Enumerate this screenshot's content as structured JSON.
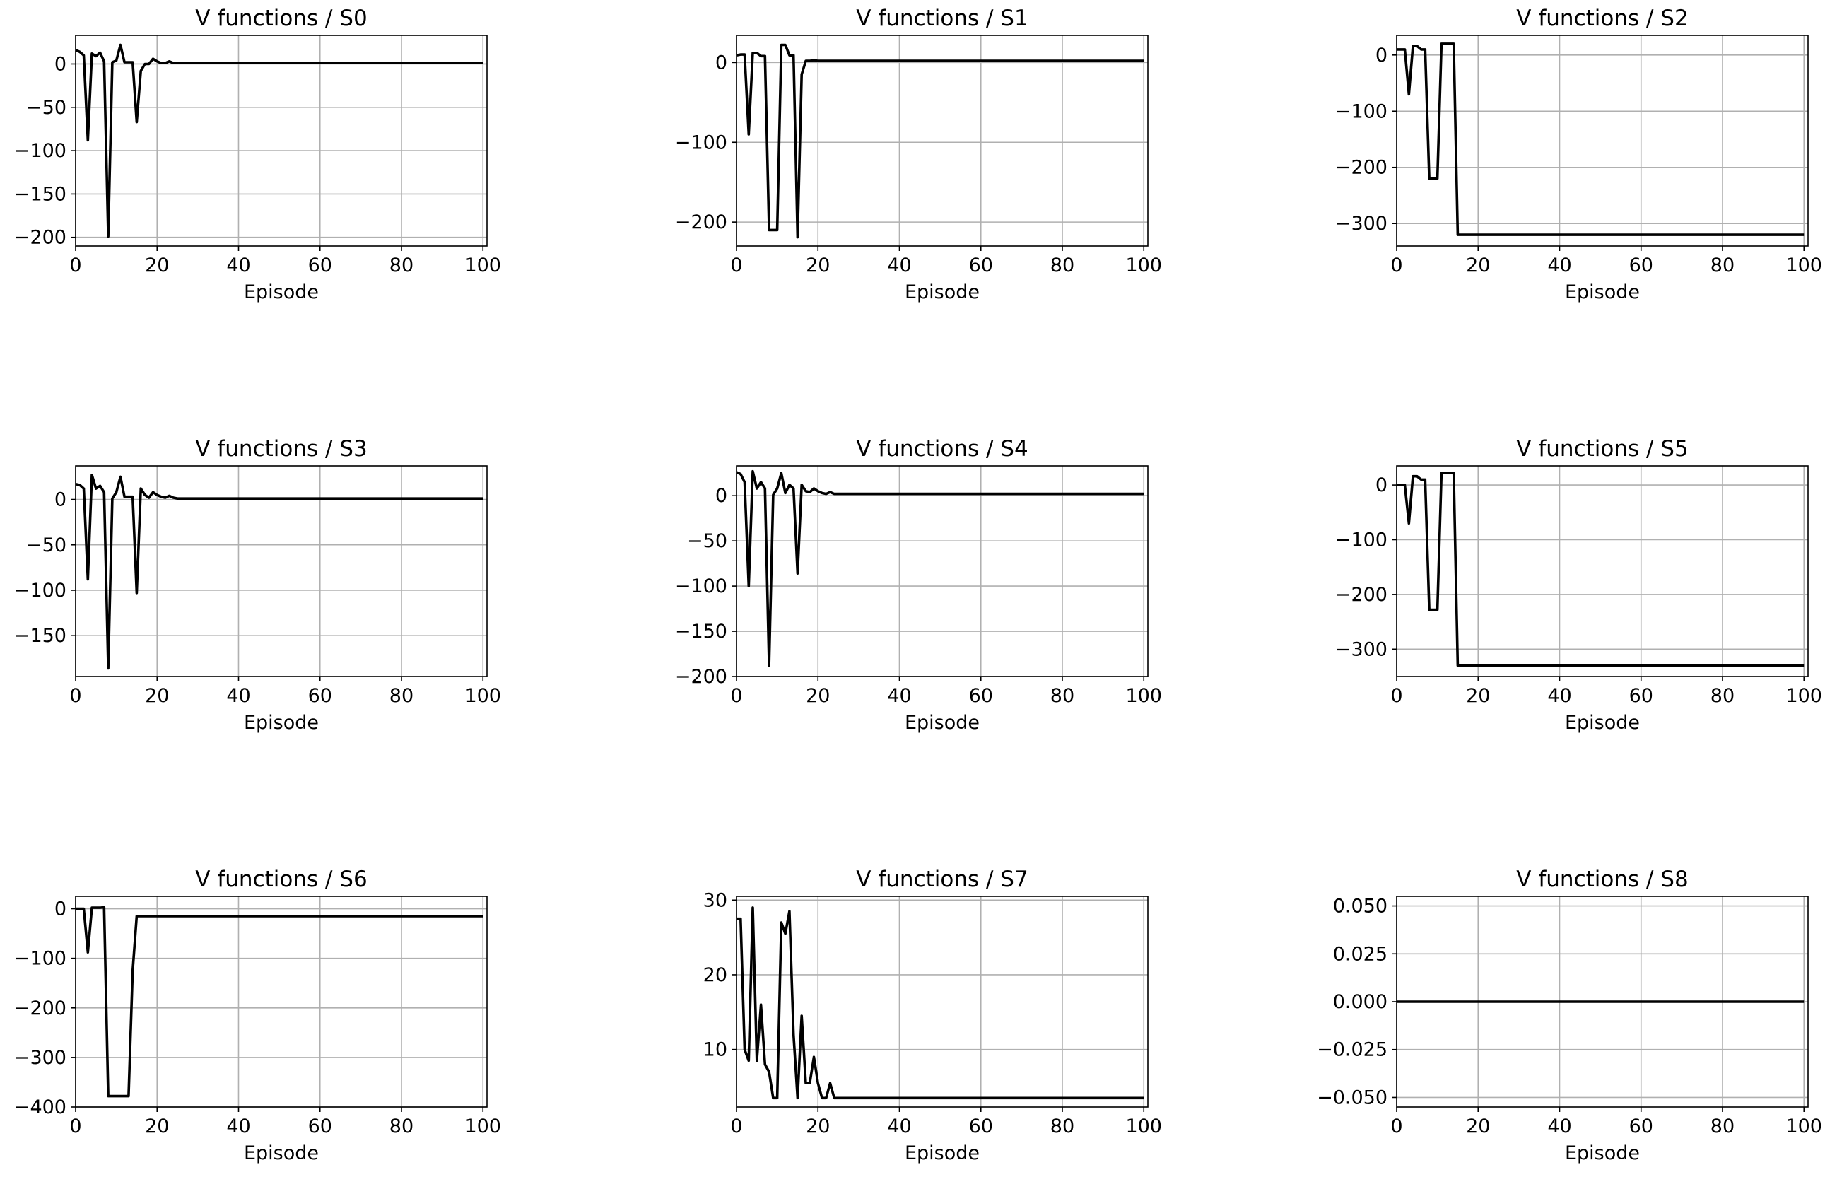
{
  "chart_data": [
    {
      "type": "line",
      "title": "V functions / S0",
      "xlabel": "Episode",
      "ylabel": "",
      "xlim": [
        0,
        101
      ],
      "ylim": [
        -210,
        33
      ],
      "xticks": [
        0,
        20,
        40,
        60,
        80,
        100
      ],
      "yticks": [
        0,
        -50,
        -100,
        -150,
        -200
      ],
      "yticklabels": [
        "0",
        "−50",
        "−100",
        "−150",
        "−200"
      ],
      "grid": true,
      "series": [
        {
          "x": [
            0,
            1,
            2,
            3,
            4,
            5,
            6,
            7,
            8,
            9,
            10,
            11,
            12,
            13,
            14,
            15,
            16,
            17,
            18,
            19,
            20,
            21,
            22,
            23,
            24,
            25,
            100
          ],
          "y": [
            16,
            14,
            10,
            -88,
            12,
            9,
            13,
            3,
            -199,
            2,
            4,
            22,
            2,
            2,
            2,
            -67,
            -8,
            0,
            0,
            6,
            3,
            1,
            1,
            3,
            1,
            1,
            1
          ]
        }
      ]
    },
    {
      "type": "line",
      "title": "V functions / S1",
      "xlabel": "Episode",
      "ylabel": "",
      "xlim": [
        0,
        101
      ],
      "ylim": [
        -230,
        34
      ],
      "xticks": [
        0,
        20,
        40,
        60,
        80,
        100
      ],
      "yticks": [
        0,
        -100,
        -200
      ],
      "yticklabels": [
        "0",
        "−100",
        "−200"
      ],
      "grid": true,
      "series": [
        {
          "x": [
            0,
            1,
            2,
            3,
            4,
            5,
            6,
            7,
            8,
            9,
            10,
            11,
            12,
            13,
            14,
            15,
            16,
            17,
            18,
            19,
            20,
            100
          ],
          "y": [
            9,
            10,
            10,
            -90,
            12,
            12,
            8,
            8,
            -210,
            -210,
            -210,
            22,
            22,
            9,
            9,
            -219,
            -15,
            2,
            2,
            3,
            2,
            2
          ]
        }
      ]
    },
    {
      "type": "line",
      "title": "V functions / S2",
      "xlabel": "Episode",
      "ylabel": "",
      "xlim": [
        0,
        101
      ],
      "ylim": [
        -340,
        35
      ],
      "xticks": [
        0,
        20,
        40,
        60,
        80,
        100
      ],
      "yticks": [
        0,
        -100,
        -200,
        -300
      ],
      "yticklabels": [
        "0",
        "−100",
        "−200",
        "−300"
      ],
      "grid": true,
      "series": [
        {
          "x": [
            0,
            1,
            2,
            3,
            4,
            5,
            6,
            7,
            8,
            9,
            10,
            11,
            12,
            13,
            14,
            15,
            100
          ],
          "y": [
            10,
            10,
            10,
            -70,
            16,
            16,
            10,
            10,
            -220,
            -220,
            -220,
            20,
            20,
            20,
            20,
            -320,
            -320
          ]
        }
      ]
    },
    {
      "type": "line",
      "title": "V functions / S3",
      "xlabel": "Episode",
      "ylabel": "",
      "xlim": [
        0,
        101
      ],
      "ylim": [
        -195,
        37
      ],
      "xticks": [
        0,
        20,
        40,
        60,
        80,
        100
      ],
      "yticks": [
        0,
        -50,
        -100,
        -150
      ],
      "yticklabels": [
        "0",
        "−50",
        "−100",
        "−150"
      ],
      "grid": true,
      "series": [
        {
          "x": [
            0,
            1,
            2,
            3,
            4,
            5,
            6,
            7,
            8,
            9,
            10,
            11,
            12,
            13,
            14,
            15,
            16,
            17,
            18,
            19,
            20,
            21,
            22,
            23,
            24,
            25,
            100
          ],
          "y": [
            17,
            16,
            12,
            -88,
            27,
            12,
            15,
            8,
            -186,
            1,
            8,
            25,
            3,
            3,
            3,
            -103,
            12,
            5,
            2,
            8,
            5,
            3,
            2,
            4,
            2,
            1,
            1
          ]
        }
      ]
    },
    {
      "type": "line",
      "title": "V functions / S4",
      "xlabel": "Episode",
      "ylabel": "",
      "xlim": [
        0,
        101
      ],
      "ylim": [
        -200,
        33
      ],
      "xticks": [
        0,
        20,
        40,
        60,
        80,
        100
      ],
      "yticks": [
        0,
        -50,
        -100,
        -150,
        -200
      ],
      "yticklabels": [
        "0",
        "−50",
        "−100",
        "−150",
        "−200"
      ],
      "grid": true,
      "series": [
        {
          "x": [
            0,
            1,
            2,
            3,
            4,
            5,
            6,
            7,
            8,
            9,
            10,
            11,
            12,
            13,
            14,
            15,
            16,
            17,
            18,
            19,
            20,
            21,
            22,
            23,
            24,
            25,
            100
          ],
          "y": [
            26,
            24,
            15,
            -100,
            27,
            8,
            15,
            8,
            -188,
            1,
            8,
            25,
            3,
            12,
            8,
            -86,
            12,
            5,
            4,
            8,
            5,
            3,
            2,
            4,
            2,
            2,
            2
          ]
        }
      ]
    },
    {
      "type": "line",
      "title": "V functions / S5",
      "xlabel": "Episode",
      "ylabel": "",
      "xlim": [
        0,
        101
      ],
      "ylim": [
        -350,
        35
      ],
      "xticks": [
        0,
        20,
        40,
        60,
        80,
        100
      ],
      "yticks": [
        0,
        -100,
        -200,
        -300
      ],
      "yticklabels": [
        "0",
        "−100",
        "−200",
        "−300"
      ],
      "grid": true,
      "series": [
        {
          "x": [
            0,
            1,
            2,
            3,
            4,
            5,
            6,
            7,
            8,
            9,
            10,
            11,
            12,
            13,
            14,
            15,
            100
          ],
          "y": [
            0,
            0,
            0,
            -70,
            16,
            16,
            10,
            10,
            -228,
            -228,
            -228,
            22,
            22,
            22,
            22,
            -330,
            -330
          ]
        }
      ]
    },
    {
      "type": "line",
      "title": "V functions / S6",
      "xlabel": "Episode",
      "ylabel": "",
      "xlim": [
        0,
        101
      ],
      "ylim": [
        -400,
        25
      ],
      "xticks": [
        0,
        20,
        40,
        60,
        80,
        100
      ],
      "yticks": [
        0,
        -100,
        -200,
        -300,
        -400
      ],
      "yticklabels": [
        "0",
        "−100",
        "−200",
        "−300",
        "−400"
      ],
      "grid": true,
      "series": [
        {
          "x": [
            0,
            1,
            2,
            3,
            4,
            5,
            6,
            7,
            8,
            9,
            10,
            11,
            12,
            13,
            14,
            15,
            16,
            17,
            100
          ],
          "y": [
            0,
            0,
            0,
            -88,
            2,
            2,
            2,
            3,
            -378,
            -378,
            -378,
            -378,
            -378,
            -378,
            -125,
            -15,
            -15,
            -15,
            -15
          ]
        }
      ]
    },
    {
      "type": "line",
      "title": "V functions / S7",
      "xlabel": "Episode",
      "ylabel": "",
      "xlim": [
        0,
        101
      ],
      "ylim": [
        2.3,
        30.5
      ],
      "xticks": [
        0,
        20,
        40,
        60,
        80,
        100
      ],
      "yticks": [
        10,
        20,
        30
      ],
      "yticklabels": [
        "10",
        "20",
        "30"
      ],
      "grid": true,
      "series": [
        {
          "x": [
            0,
            1,
            2,
            3,
            4,
            5,
            6,
            7,
            8,
            9,
            10,
            11,
            12,
            13,
            14,
            15,
            16,
            17,
            18,
            19,
            20,
            21,
            22,
            23,
            24,
            25,
            100
          ],
          "y": [
            27.5,
            27.5,
            10,
            8.5,
            29,
            8.5,
            16,
            8,
            7,
            3.5,
            3.5,
            27,
            25.5,
            28.5,
            12,
            3.5,
            14.5,
            5.5,
            5.5,
            9,
            5.5,
            3.5,
            3.5,
            5.5,
            3.5,
            3.5,
            3.5
          ]
        }
      ]
    },
    {
      "type": "line",
      "title": "V functions / S8",
      "xlabel": "Episode",
      "ylabel": "",
      "xlim": [
        0,
        101
      ],
      "ylim": [
        -0.055,
        0.055
      ],
      "xticks": [
        0,
        20,
        40,
        60,
        80,
        100
      ],
      "yticks": [
        0.05,
        0.025,
        0,
        -0.025,
        -0.05
      ],
      "yticklabels": [
        "0.050",
        "0.025",
        "0.000",
        "−0.025",
        "−0.050"
      ],
      "grid": true,
      "series": [
        {
          "x": [
            0,
            100
          ],
          "y": [
            0,
            0
          ]
        }
      ]
    }
  ]
}
